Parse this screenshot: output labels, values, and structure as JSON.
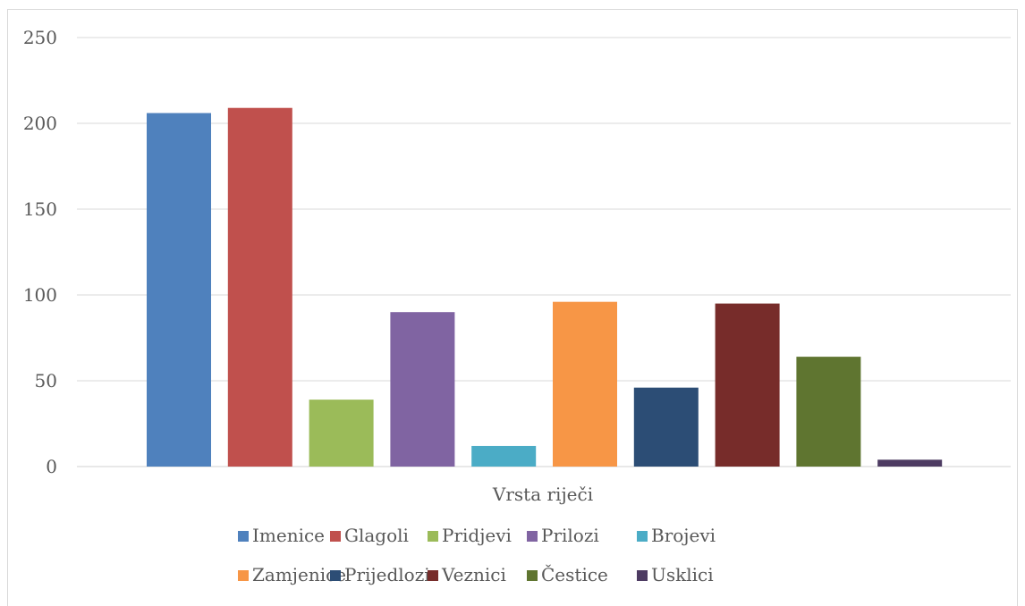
{
  "chart_data": {
    "type": "bar",
    "title": "",
    "xlabel": "Vrsta riječi",
    "ylabel": "",
    "ylim": [
      0,
      250
    ],
    "yticks": [
      0,
      50,
      100,
      150,
      200,
      250
    ],
    "grid": true,
    "legend_position": "bottom",
    "series": [
      {
        "name": "Imenice",
        "value": 206,
        "color": "#4f81bd"
      },
      {
        "name": "Glagoli",
        "value": 209,
        "color": "#c0504d"
      },
      {
        "name": "Pridjevi",
        "value": 39,
        "color": "#9bbb59"
      },
      {
        "name": "Prilozi",
        "value": 90,
        "color": "#8064a2"
      },
      {
        "name": "Brojevi",
        "value": 12,
        "color": "#4bacc6"
      },
      {
        "name": "Zamjenice",
        "value": 96,
        "color": "#f79646"
      },
      {
        "name": "Prijedlozi",
        "value": 46,
        "color": "#2c4d75"
      },
      {
        "name": "Veznici",
        "value": 95,
        "color": "#772c2a"
      },
      {
        "name": "Čestice",
        "value": 64,
        "color": "#5f7530"
      },
      {
        "name": "Usklici",
        "value": 4,
        "color": "#4d3b62"
      }
    ]
  }
}
